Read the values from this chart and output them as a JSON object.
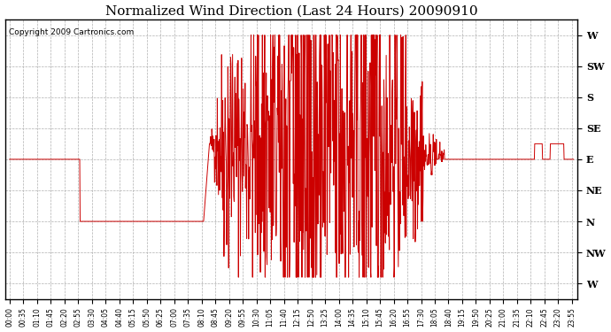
{
  "title": "Normalized Wind Direction (Last 24 Hours) 20090910",
  "copyright_text": "Copyright 2009 Cartronics.com",
  "line_color": "#cc0000",
  "background_color": "#ffffff",
  "grid_color": "#b0b0b0",
  "ytick_labels": [
    "W",
    "SW",
    "S",
    "SE",
    "E",
    "NE",
    "N",
    "NW",
    "W"
  ],
  "ytick_values": [
    8,
    7,
    6,
    5,
    4,
    3,
    2,
    1,
    0
  ],
  "ylim": [
    -0.5,
    8.5
  ],
  "title_fontsize": 11,
  "xlim_min": 0,
  "xlim_max": 1439,
  "tick_interval_minutes": 35
}
